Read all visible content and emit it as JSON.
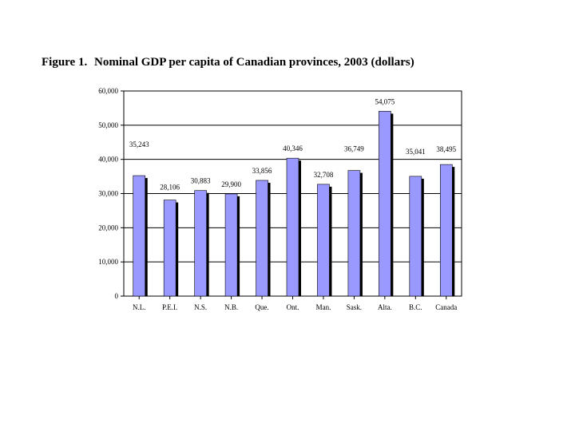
{
  "figure": {
    "label": "Figure 1.",
    "title": "Nominal GDP per capita of Canadian provinces, 2003 (dollars)"
  },
  "colors": {
    "bar": "#9999ff",
    "bar_shadow": "#000000",
    "axis": "#000000",
    "grid": "#000000"
  },
  "chart_data": {
    "type": "bar",
    "title": "Nominal GDP per capita of Canadian provinces, 2003 (dollars)",
    "xlabel": "",
    "ylabel": "",
    "categories": [
      "N.L.",
      "P.E.I.",
      "N.S.",
      "N.B.",
      "Que.",
      "Ont.",
      "Man.",
      "Sask.",
      "Alta.",
      "B.C.",
      "Canada"
    ],
    "values": [
      35243,
      28106,
      30883,
      29900,
      33856,
      40346,
      32708,
      36749,
      54075,
      35041,
      38495
    ],
    "value_labels": [
      "35,243",
      "28,106",
      "30,883",
      "29,900",
      "33,856",
      "40,346",
      "32,708",
      "36,749",
      "54,075",
      "35,041",
      "38,495"
    ],
    "yticks": [
      0,
      10000,
      20000,
      30000,
      40000,
      50000,
      60000
    ],
    "ytick_labels": [
      "0",
      "10,000",
      "20,000",
      "30,000",
      "40,000",
      "50,000",
      "60,000"
    ],
    "ylim": [
      0,
      60000
    ],
    "grid": true,
    "legend": "none"
  }
}
